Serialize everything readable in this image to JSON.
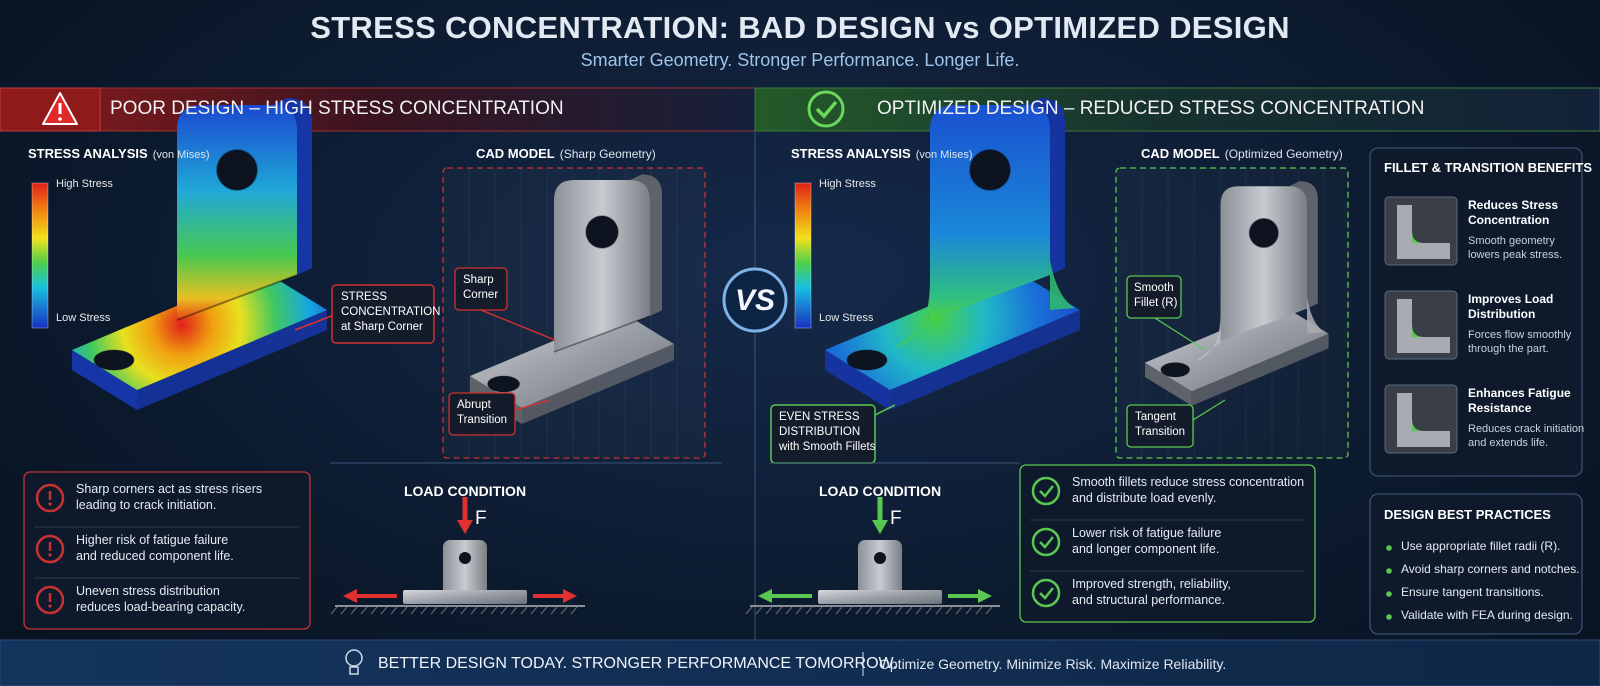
{
  "header": {
    "title": "STRESS CONCENTRATION: BAD DESIGN vs OPTIMIZED DESIGN",
    "subtitle": "Smarter Geometry. Stronger Performance. Longer Life."
  },
  "vs": "VS",
  "poor": {
    "heading": "POOR DESIGN – HIGH STRESS CONCENTRATION",
    "analysis": {
      "title": "STRESS ANALYSIS",
      "note": "(von Mises)",
      "high": "High Stress",
      "low": "Low Stress",
      "callout": [
        "STRESS",
        "CONCENTRATION",
        "at Sharp Corner"
      ]
    },
    "cad": {
      "title": "CAD MODEL",
      "note": "(Sharp Geometry)",
      "labels": [
        [
          "Sharp",
          "Corner"
        ],
        [
          "Abrupt",
          "Transition"
        ]
      ]
    },
    "points": [
      [
        "Sharp corners act as stress risers",
        "leading to crack initiation."
      ],
      [
        "Higher risk of fatigue failure",
        "and reduced component life."
      ],
      [
        "Uneven stress distribution",
        "reduces load-bearing capacity."
      ]
    ],
    "load": {
      "title": "LOAD CONDITION",
      "force": "F"
    }
  },
  "optimized": {
    "heading": "OPTIMIZED DESIGN – REDUCED STRESS CONCENTRATION",
    "analysis": {
      "title": "STRESS ANALYSIS",
      "note": "(von Mises)",
      "high": "High Stress",
      "low": "Low Stress",
      "callout": [
        "EVEN STRESS",
        "DISTRIBUTION",
        "with Smooth Fillets"
      ]
    },
    "cad": {
      "title": "CAD MODEL",
      "note": "(Optimized Geometry)",
      "labels": [
        [
          "Smooth",
          "Fillet (R)"
        ],
        [
          "Tangent",
          "Transition"
        ]
      ]
    },
    "points": [
      [
        "Smooth fillets reduce stress concentration",
        "and distribute load evenly."
      ],
      [
        "Lower risk of fatigue failure",
        "and longer component life."
      ],
      [
        "Improved strength, reliability,",
        "and structural performance."
      ]
    ],
    "load": {
      "title": "LOAD CONDITION",
      "force": "F"
    }
  },
  "benefits": {
    "title": "FILLET & TRANSITION BENEFITS",
    "items": [
      {
        "title": [
          "Reduces Stress",
          "Concentration"
        ],
        "text": [
          "Smooth geometry",
          "lowers peak stress."
        ]
      },
      {
        "title": [
          "Improves Load",
          "Distribution"
        ],
        "text": [
          "Forces flow smoothly",
          "through the part."
        ]
      },
      {
        "title": [
          "Enhances Fatigue",
          "Resistance"
        ],
        "text": [
          "Reduces crack initiation",
          "and extends life."
        ]
      }
    ]
  },
  "practices": {
    "title": "DESIGN BEST PRACTICES",
    "items": [
      "Use appropriate fillet radii (R).",
      "Avoid sharp corners and notches.",
      "Ensure tangent transitions.",
      "Validate with FEA during design."
    ]
  },
  "footer": {
    "main": "BETTER DESIGN TODAY. STRONGER PERFORMANCE TOMORROW.",
    "sub": "Optimize Geometry. Minimize Risk. Maximize Reliability."
  }
}
